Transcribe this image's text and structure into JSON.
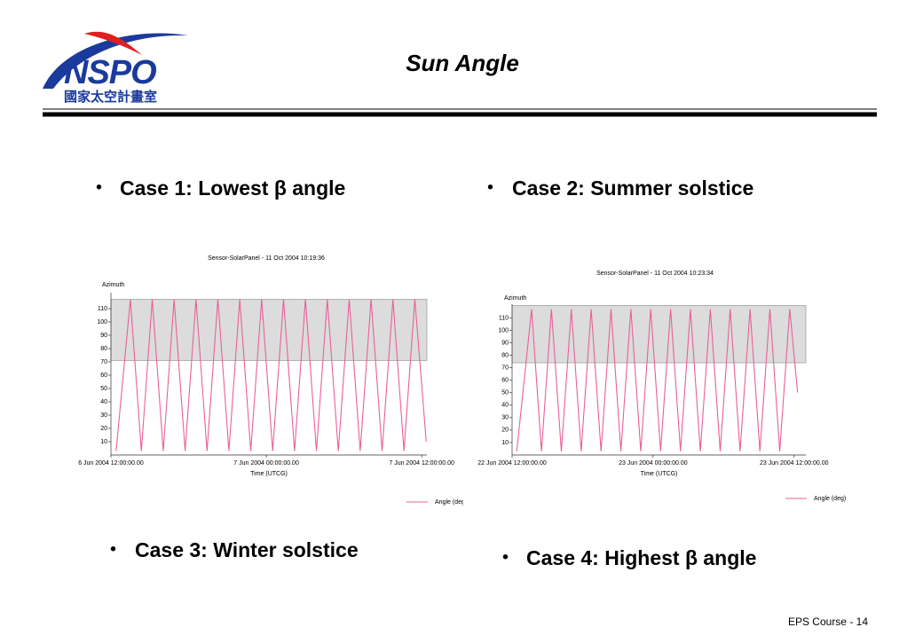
{
  "logo": {
    "text": "NSPO",
    "subtitle": "國家太空計畫室"
  },
  "header": {
    "title": "Sun Angle"
  },
  "bullets": [
    "Case 1: Lowest β angle",
    "Case 2: Summer solstice",
    "Case 3: Winter solstice",
    "Case 4: Highest β angle"
  ],
  "footer": "EPS Course - 14",
  "chart_data": [
    {
      "type": "line",
      "title": "Sensor-SolarPanel - 11 Oct 2004 10:19:36",
      "y_label": "Azimuth",
      "x_label": "Time (UTCG)",
      "xlim": [
        0,
        24.4
      ],
      "ylim": [
        0,
        122
      ],
      "xticks": [
        {
          "value": 0,
          "label": "6 Jun 2004 12:00:00.00"
        },
        {
          "value": 12,
          "label": "7 Jun 2004 00:00:00.00"
        },
        {
          "value": 24,
          "label": "7 Jun 2004 12:00:00.00"
        }
      ],
      "yticks": [
        10,
        20,
        30,
        40,
        50,
        60,
        70,
        80,
        90,
        100,
        110
      ],
      "band": [
        71,
        117
      ],
      "band_color": "#dcdcdc",
      "series": [
        {
          "name": "Angle (deg)",
          "color": "#e8609a",
          "x": [
            0.4,
            1.5,
            2.35,
            3.19,
            4.04,
            4.88,
            5.73,
            6.57,
            7.42,
            8.26,
            9.11,
            9.95,
            10.8,
            11.64,
            12.49,
            13.33,
            14.18,
            15.02,
            15.87,
            16.71,
            17.56,
            18.4,
            19.25,
            20.09,
            20.94,
            21.78,
            22.63,
            23.47,
            24.35
          ],
          "values": [
            3,
            117,
            3,
            117,
            3,
            117,
            3,
            117,
            3,
            117,
            3,
            117,
            3,
            117,
            3,
            117,
            3,
            117,
            3,
            117,
            3,
            117,
            3,
            117,
            3,
            117,
            3,
            117,
            10
          ]
        }
      ]
    },
    {
      "type": "line",
      "title": "Sensor-SolarPanel - 11 Oct 2004 10:23:34",
      "y_label": "Azimuth",
      "x_label": "Time (UTCG)",
      "xlim": [
        0,
        25
      ],
      "ylim": [
        0,
        121
      ],
      "xticks": [
        {
          "value": 0,
          "label": "22 Jun 2004 12:00:00.00"
        },
        {
          "value": 12,
          "label": "23 Jun 2004 00:00:00.00"
        },
        {
          "value": 24,
          "label": "23 Jun 2004 12:00:00.00"
        }
      ],
      "yticks": [
        10,
        20,
        30,
        40,
        50,
        60,
        70,
        80,
        90,
        100,
        110
      ],
      "band": [
        74,
        120
      ],
      "band_color": "#dcdcdc",
      "series": [
        {
          "name": "Angle (deg)",
          "color": "#e8609a",
          "x": [
            0.4,
            1.66,
            2.5,
            3.35,
            4.19,
            5.04,
            5.88,
            6.73,
            7.57,
            8.42,
            9.26,
            10.11,
            10.95,
            11.8,
            12.64,
            13.49,
            14.33,
            15.18,
            16.02,
            16.87,
            17.71,
            18.56,
            19.4,
            20.25,
            21.09,
            21.94,
            22.78,
            23.63,
            24.3
          ],
          "values": [
            3,
            117,
            3,
            117,
            3,
            117,
            3,
            117,
            3,
            117,
            3,
            117,
            3,
            117,
            3,
            117,
            3,
            117,
            3,
            117,
            3,
            117,
            3,
            117,
            3,
            117,
            3,
            117,
            50
          ]
        }
      ]
    }
  ]
}
